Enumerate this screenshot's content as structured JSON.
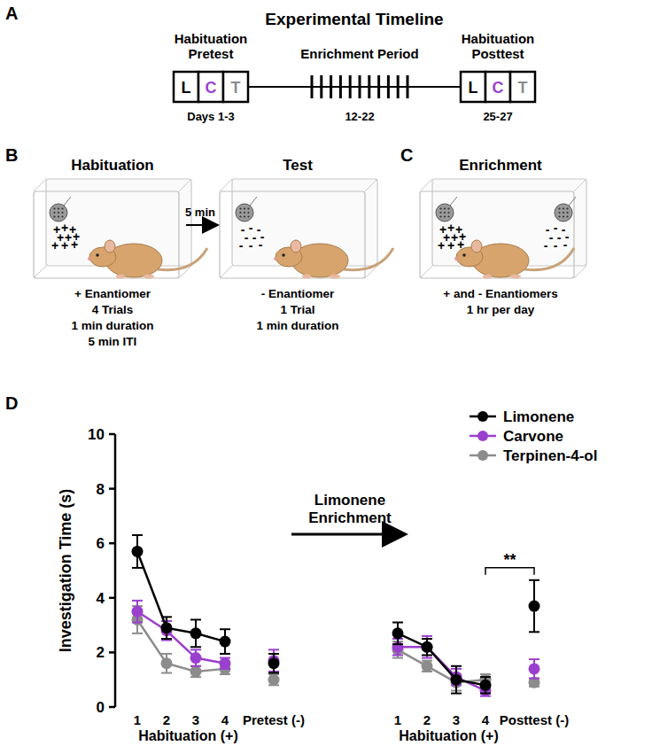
{
  "panels": {
    "A": {
      "label": "A",
      "title": "Experimental Timeline",
      "stages": [
        {
          "title": [
            "Habituation",
            "Pretest"
          ],
          "boxes": [
            {
              "text": "L",
              "color": "#000000"
            },
            {
              "text": "C",
              "color": "#9b3fcf"
            },
            {
              "text": "T",
              "color": "#8c8c8c"
            }
          ],
          "days": "Days 1-3"
        },
        {
          "title": [
            "Enrichment Period"
          ],
          "days": "12-22"
        },
        {
          "title": [
            "Habituation",
            "Posttest"
          ],
          "boxes": [
            {
              "text": "L",
              "color": "#000000"
            },
            {
              "text": "C",
              "color": "#9b3fcf"
            },
            {
              "text": "T",
              "color": "#8c8c8c"
            }
          ],
          "days": "25-27"
        }
      ]
    },
    "B": {
      "label": "B",
      "interval": "5 min",
      "steps": [
        {
          "title": "Habituation",
          "symbol": "+",
          "lines": [
            "+ Enantiomer",
            "4 Trials",
            "1 min duration",
            "5 min ITI"
          ]
        },
        {
          "title": "Test",
          "symbol": "-",
          "lines": [
            "- Enantiomer",
            "1 Trial",
            "1 min duration"
          ]
        }
      ]
    },
    "C": {
      "label": "C",
      "title": "Enrichment",
      "symbols": [
        "+",
        "-"
      ],
      "lines": [
        "+ and - Enantiomers",
        "1 hr per day"
      ]
    },
    "D": {
      "label": "D"
    }
  },
  "chart_data": {
    "type": "line",
    "y_label": "Investigation Time (s)",
    "categories": [
      "1",
      "2",
      "3",
      "4",
      "Pretest (-)",
      null,
      "1",
      "2",
      "3",
      "4",
      "Posttest (-)"
    ],
    "x_groups": [
      {
        "label": "Habituation (+)",
        "span": [
          0,
          3
        ]
      },
      {
        "label": "Habituation (+)",
        "span": [
          6,
          9
        ]
      }
    ],
    "ylim": [
      0,
      10
    ],
    "yticks": [
      0,
      2,
      4,
      6,
      8,
      10
    ],
    "legend": "top-right",
    "marker": "circle",
    "series": [
      {
        "name": "Limonene",
        "color": "#000000",
        "values": [
          5.7,
          2.9,
          2.7,
          2.4,
          1.6,
          null,
          2.7,
          2.2,
          1.0,
          0.8,
          3.7
        ],
        "errors": [
          0.6,
          0.4,
          0.5,
          0.45,
          0.35,
          null,
          0.4,
          0.3,
          0.5,
          0.3,
          0.95
        ]
      },
      {
        "name": "Carvone",
        "color": "#9b3fcf",
        "values": [
          3.5,
          2.8,
          1.8,
          1.6,
          1.7,
          null,
          2.2,
          2.2,
          1.1,
          0.6,
          1.4
        ],
        "errors": [
          0.4,
          0.35,
          0.3,
          0.2,
          0.4,
          null,
          0.3,
          0.4,
          0.3,
          0.2,
          0.35
        ]
      },
      {
        "name": "Terpinen-4-ol",
        "color": "#8c8c8c",
        "values": [
          3.2,
          1.6,
          1.3,
          1.4,
          1.0,
          null,
          2.1,
          1.5,
          0.9,
          1.0,
          0.9
        ],
        "errors": [
          0.5,
          0.35,
          0.2,
          0.2,
          0.2,
          null,
          0.3,
          0.2,
          0.3,
          0.2,
          0.15
        ]
      }
    ],
    "annotation": {
      "lines": [
        "Limonene",
        "Enrichment"
      ],
      "at": 5
    },
    "significance": [
      {
        "text": "**",
        "between": [
          9,
          10
        ]
      }
    ]
  }
}
